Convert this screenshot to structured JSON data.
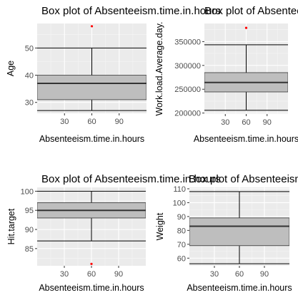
{
  "chart_data": [
    {
      "type": "boxplot",
      "title": "Box plot of Absenteeism.time.in.hours",
      "xlabel": "Absenteeism.time.in.hours",
      "ylabel": "Age",
      "x_ticks": [
        30,
        60,
        90
      ],
      "y_ticks": [
        30,
        40,
        50
      ],
      "xlim": [
        0,
        120
      ],
      "ylim": [
        26,
        59
      ],
      "x_center": 60,
      "box": {
        "whisker_low": 27,
        "q1": 31,
        "median": 37,
        "q3": 40,
        "whisker_high": 50
      },
      "outliers": [
        58
      ],
      "box_fill": "#bebebe",
      "outlier_color": "#ff0000",
      "grid": true
    },
    {
      "type": "boxplot",
      "title": "Box plot of Absenteeism.time.in.hours",
      "xlabel": "Absenteeism.time.in.hours",
      "ylabel": "Work.load.Average.day.",
      "x_ticks": [
        30,
        60,
        90
      ],
      "y_ticks": [
        200000,
        250000,
        300000,
        350000
      ],
      "xlim": [
        0,
        120
      ],
      "ylim": [
        198000,
        388000
      ],
      "x_center": 60,
      "box": {
        "whisker_low": 205917,
        "q1": 244387,
        "median": 264249,
        "q3": 284853,
        "whisker_high": 343253
      },
      "outliers": [
        378884
      ],
      "box_fill": "#bebebe",
      "outlier_color": "#ff0000",
      "grid": true
    },
    {
      "type": "boxplot",
      "title": "Box plot of Absenteeism.time.in.hours",
      "xlabel": "Absenteeism.time.in.hours",
      "ylabel": "Hit.target",
      "x_ticks": [
        30,
        60,
        90
      ],
      "y_ticks": [
        85,
        90,
        95,
        100
      ],
      "xlim": [
        0,
        120
      ],
      "ylim": [
        80.5,
        101
      ],
      "x_center": 60,
      "box": {
        "whisker_low": 87,
        "q1": 93,
        "median": 95,
        "q3": 97,
        "whisker_high": 100
      },
      "outliers": [
        81
      ],
      "box_fill": "#bebebe",
      "outlier_color": "#ff0000",
      "grid": true
    },
    {
      "type": "boxplot",
      "title": "Box plot of Absenteeism.time.in.hours",
      "xlabel": "Absenteeism.time.in.hours",
      "ylabel": "Weight",
      "x_ticks": [
        30,
        60,
        90
      ],
      "y_ticks": [
        60,
        70,
        80,
        90,
        100,
        110
      ],
      "xlim": [
        0,
        120
      ],
      "ylim": [
        54.5,
        111
      ],
      "x_center": 60,
      "box": {
        "whisker_low": 56,
        "q1": 69,
        "median": 83,
        "q3": 89,
        "whisker_high": 108
      },
      "outliers": [],
      "box_fill": "#bebebe",
      "outlier_color": "#ff0000",
      "grid": true
    }
  ]
}
